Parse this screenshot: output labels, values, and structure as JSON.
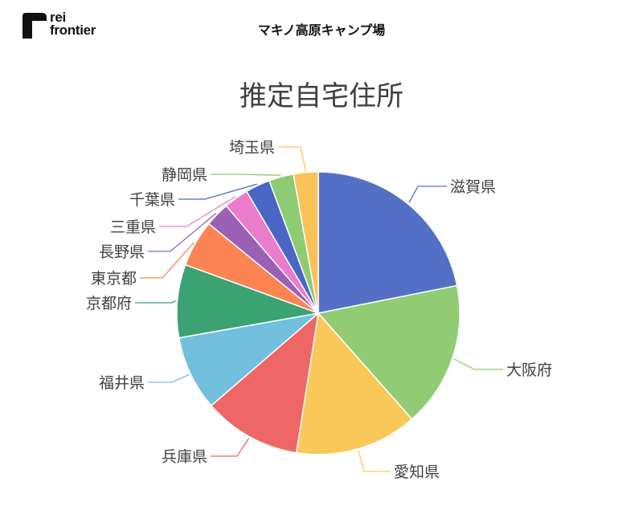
{
  "header": {
    "logo_line1": "rei",
    "logo_line2": "frontier",
    "title": "マキノ高原キャンプ場"
  },
  "chart_data": {
    "type": "pie",
    "title": "推定自宅住所",
    "slices": [
      {
        "label": "滋賀県",
        "value": 22.5,
        "color": "#5470c6"
      },
      {
        "label": "大阪府",
        "value": 17.1,
        "color": "#91cc75"
      },
      {
        "label": "愛知県",
        "value": 14.4,
        "color": "#fac858"
      },
      {
        "label": "兵庫県",
        "value": 11.5,
        "color": "#ee6666"
      },
      {
        "label": "福井県",
        "value": 8.8,
        "color": "#73c0de"
      },
      {
        "label": "京都府",
        "value": 8.6,
        "color": "#3ba272"
      },
      {
        "label": "東京都",
        "value": 5.5,
        "color": "#fc8452"
      },
      {
        "label": "長野県",
        "value": 2.9,
        "color": "#9a60b4"
      },
      {
        "label": "三重県",
        "value": 2.9,
        "color": "#ea7ccc"
      },
      {
        "label": "千葉県",
        "value": 2.9,
        "color": "#4a66c4"
      },
      {
        "label": "静岡県",
        "value": 2.9,
        "color": "#8fcb72"
      },
      {
        "label": "埼玉県",
        "value": 2.9,
        "color": "#fbc25a"
      }
    ]
  }
}
